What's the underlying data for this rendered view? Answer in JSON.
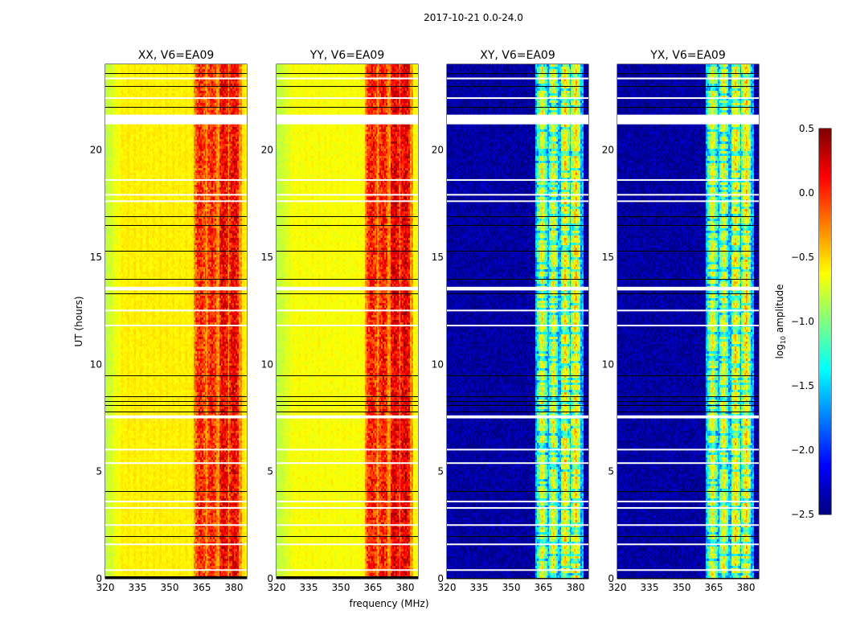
{
  "chart_data": {
    "type": "heatmap",
    "title": "2017-10-21 0.0-24.0",
    "xlabel": "frequency (MHz)",
    "ylabel": "UT (hours)",
    "xlim": [
      320,
      386
    ],
    "ylim": [
      0,
      24
    ],
    "xticks": [
      "320",
      "335",
      "350",
      "365",
      "380"
    ],
    "xtick_values": [
      320,
      335,
      350,
      365,
      380
    ],
    "yticks": [
      "0",
      "5",
      "10",
      "15",
      "20"
    ],
    "ytick_values": [
      0,
      5,
      10,
      15,
      20
    ],
    "colormap": "jet",
    "colorbar": {
      "label": "log10 amplitude",
      "label_main": "log",
      "label_sub": "10",
      "label_rest": " amplitude",
      "range": [
        -2.5,
        0.5
      ],
      "ticks": [
        "0.5",
        "0.0",
        "−0.5",
        "−1.0",
        "−1.5",
        "−2.0",
        "−2.5"
      ],
      "tick_values": [
        0.5,
        0.0,
        -0.5,
        -1.0,
        -1.5,
        -2.0,
        -2.5
      ]
    },
    "band_blocks_mhz": [
      [
        362,
        366.5
      ],
      [
        367.3,
        371.7
      ],
      [
        372.9,
        377
      ],
      [
        377.7,
        382.2
      ]
    ],
    "panels": [
      {
        "title": "XX, V6=EA09",
        "background_level": -0.6,
        "band_level": 0.05,
        "edge_level": -0.85
      },
      {
        "title": "YY, V6=EA09",
        "background_level": -0.65,
        "band_level": 0.1,
        "edge_level": -0.85
      },
      {
        "title": "XY, V6=EA09",
        "background_level": -2.4,
        "band_level": -0.6,
        "edge_level": -2.4
      },
      {
        "title": "YX, V6=EA09",
        "background_level": -2.4,
        "band_level": -0.6,
        "edge_level": -2.4
      }
    ],
    "flagged_gaps_hours": [
      [
        21.2,
        21.65
      ],
      [
        13.45,
        13.62
      ],
      [
        7.48,
        7.62
      ],
      [
        23.3,
        23.38
      ],
      [
        22.4,
        22.46
      ],
      [
        18.6,
        18.64
      ],
      [
        17.9,
        17.95
      ],
      [
        17.6,
        17.65
      ],
      [
        12.5,
        12.55
      ],
      [
        11.8,
        11.85
      ],
      [
        6.0,
        6.06
      ],
      [
        5.4,
        5.43
      ],
      [
        3.6,
        3.64
      ],
      [
        3.3,
        3.34
      ],
      [
        2.5,
        2.54
      ],
      [
        1.6,
        1.64
      ],
      [
        0.4,
        0.44
      ]
    ],
    "black_lines_hours": [
      23.6,
      23.0,
      22.0,
      16.9,
      16.5,
      15.3,
      14.0,
      13.3,
      9.5,
      8.5,
      8.3,
      8.1,
      7.8,
      4.1,
      2.0,
      0.05
    ]
  }
}
